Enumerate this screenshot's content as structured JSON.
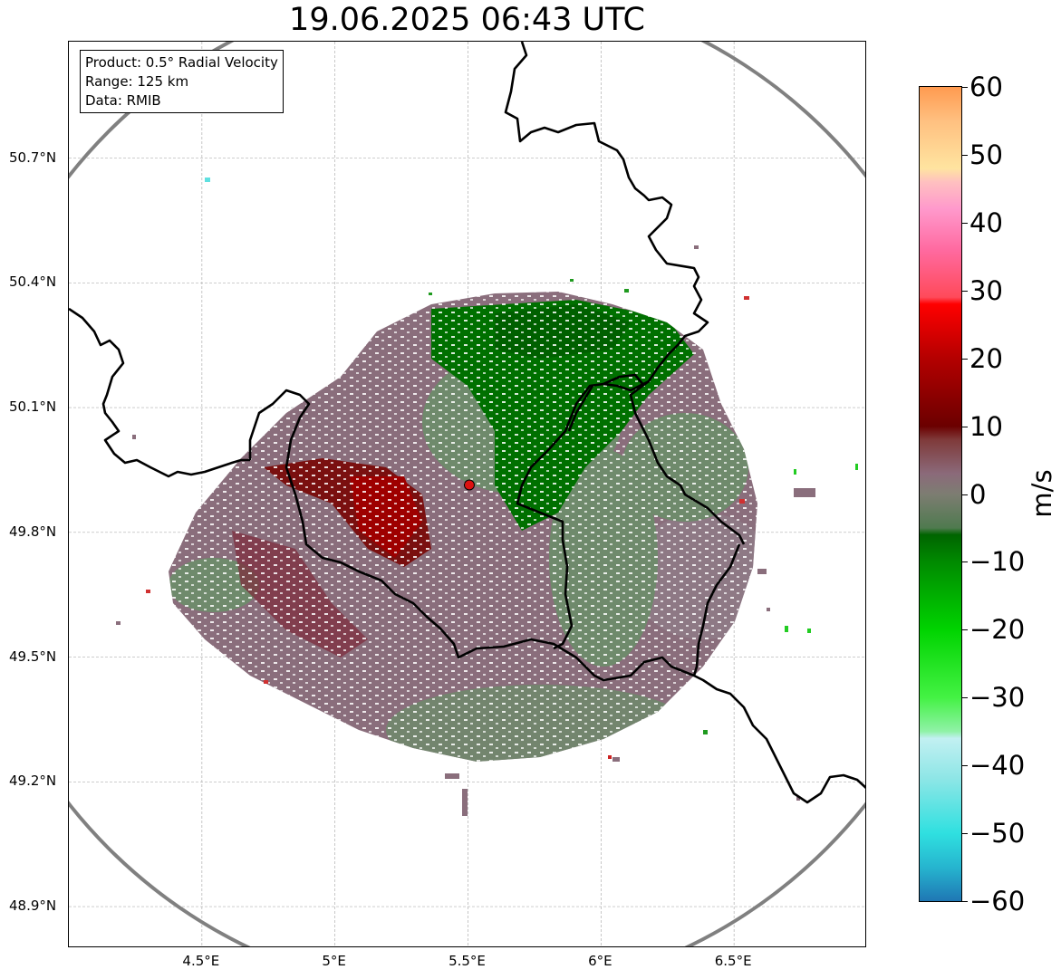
{
  "title": "19.06.2025 06:43 UTC",
  "info": {
    "product": "Product: 0.5° Radial Velocity",
    "range": "Range: 125 km",
    "data": "Data: RMIB"
  },
  "axes": {
    "lat_labels": [
      "50.7°N",
      "50.4°N",
      "50.1°N",
      "49.8°N",
      "49.5°N",
      "49.2°N",
      "48.9°N"
    ],
    "lon_labels": [
      "4.5°E",
      "5°E",
      "5.5°E",
      "6°E",
      "6.5°E"
    ],
    "lat_values": [
      50.7,
      50.4,
      50.1,
      49.8,
      49.5,
      49.2,
      48.9
    ],
    "lon_values": [
      4.5,
      5.0,
      5.5,
      6.0,
      6.5
    ],
    "lon_range": [
      4.0,
      7.0
    ],
    "lat_range": [
      48.8,
      50.98
    ]
  },
  "radar": {
    "site_lon": 5.505,
    "site_lat": 49.914,
    "range_km": 125,
    "site_color": "#dd1111",
    "ring_color": "#808080"
  },
  "colorbar": {
    "unit": "m/s",
    "min": -60,
    "max": 60,
    "tick_values": [
      60,
      50,
      40,
      30,
      20,
      10,
      0,
      -10,
      -20,
      -30,
      -40,
      -50,
      -60
    ],
    "tick_labels": [
      "60",
      "50",
      "40",
      "30",
      "20",
      "10",
      "0",
      "−10",
      "−20",
      "−30",
      "−40",
      "−50",
      "−60"
    ],
    "stops": [
      {
        "v": -60,
        "c": "#1f77b4"
      },
      {
        "v": -55,
        "c": "#26b5cf"
      },
      {
        "v": -50,
        "c": "#2fe0e0"
      },
      {
        "v": -42,
        "c": "#8de6e6"
      },
      {
        "v": -36,
        "c": "#c2f0f2"
      },
      {
        "v": -35,
        "c": "#90f2a8"
      },
      {
        "v": -30,
        "c": "#44f244"
      },
      {
        "v": -20,
        "c": "#00d400"
      },
      {
        "v": -10,
        "c": "#008a00"
      },
      {
        "v": -6,
        "c": "#006400"
      },
      {
        "v": -5,
        "c": "#4f7a4f"
      },
      {
        "v": 0,
        "c": "#7d7d72"
      },
      {
        "v": 3,
        "c": "#8b6a7a"
      },
      {
        "v": 8,
        "c": "#7f3a3a"
      },
      {
        "v": 10,
        "c": "#6b0000"
      },
      {
        "v": 20,
        "c": "#b40000"
      },
      {
        "v": 28,
        "c": "#ff0000"
      },
      {
        "v": 29,
        "c": "#ff4a5a"
      },
      {
        "v": 36,
        "c": "#ff6aa0"
      },
      {
        "v": 42,
        "c": "#ff99cc"
      },
      {
        "v": 46,
        "c": "#ffc0c0"
      },
      {
        "v": 48,
        "c": "#ffe4a0"
      },
      {
        "v": 55,
        "c": "#ffc080"
      },
      {
        "v": 60,
        "c": "#ff9a50"
      }
    ]
  }
}
